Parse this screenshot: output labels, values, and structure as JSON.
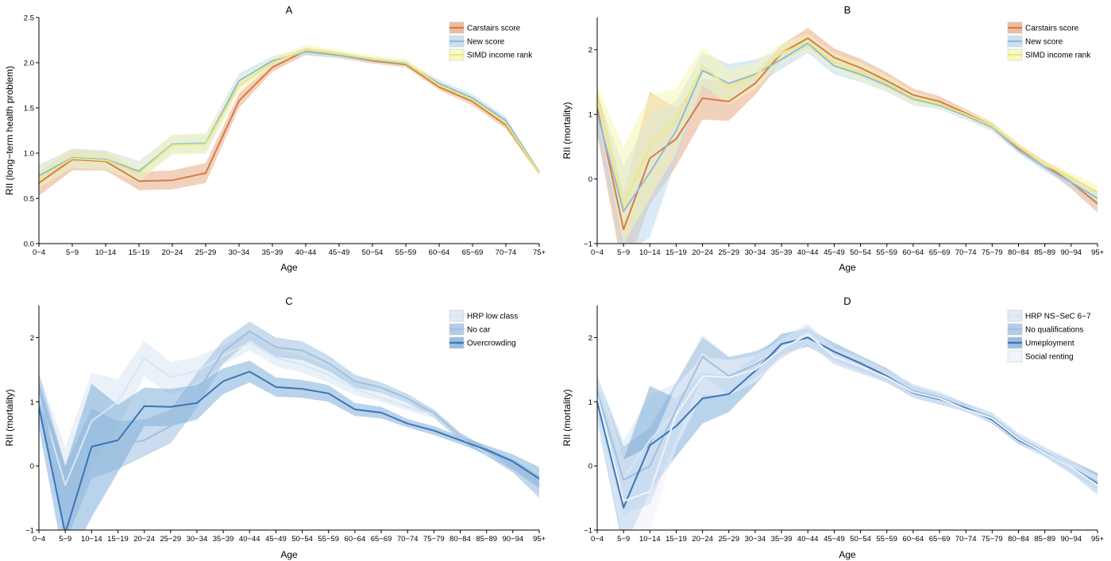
{
  "colors": {
    "carstairs": "#d97a45",
    "carstairs_band": "#e8ab85",
    "new_score": "#8dbbdc",
    "new_score_band": "#bcd9ee",
    "simd": "#ece87a",
    "simd_band": "#f8f6b6",
    "blue1": "#d8e6f4",
    "blue2": "#9fc0de",
    "blue3": "#3b75b7",
    "blue4": "#7faed8",
    "blue5": "#eef3fb"
  },
  "chart_data": [
    {
      "id": "A",
      "type": "line",
      "title": "A",
      "xlabel": "Age",
      "ylabel": "RII (long−term health problem)",
      "ylim": [
        0,
        2.5
      ],
      "yticks": [
        0.0,
        0.5,
        1.0,
        1.5,
        2.0,
        2.5
      ],
      "ytick_labels": [
        "0.0",
        "0.5",
        "1.0",
        "1.5",
        "2.0",
        "2.5"
      ],
      "legend_position": "top-right",
      "categories": [
        "0−4",
        "5−9",
        "10−14",
        "15−19",
        "20−24",
        "25−29",
        "30−34",
        "35−39",
        "40−44",
        "45−49",
        "50−54",
        "55−59",
        "60−64",
        "65−69",
        "70−74",
        "75+"
      ],
      "series": [
        {
          "name": "Carstairs score",
          "color_key": "carstairs",
          "band_key": "carstairs_band",
          "line_width": 2,
          "values": [
            0.67,
            0.93,
            0.91,
            0.69,
            0.7,
            0.78,
            1.58,
            1.95,
            2.13,
            2.08,
            2.02,
            1.98,
            1.73,
            1.57,
            1.31,
            0.78
          ],
          "lower": [
            0.53,
            0.81,
            0.81,
            0.59,
            0.6,
            0.67,
            1.5,
            1.9,
            2.09,
            2.05,
            1.99,
            1.95,
            1.7,
            1.53,
            1.27,
            0.76
          ],
          "upper": [
            0.8,
            1.04,
            1.02,
            0.79,
            0.81,
            0.89,
            1.66,
            2.0,
            2.17,
            2.12,
            2.05,
            2.01,
            1.77,
            1.6,
            1.35,
            0.8
          ]
        },
        {
          "name": "New score",
          "color_key": "new_score",
          "band_key": "new_score_band",
          "line_width": 2,
          "values": [
            0.75,
            0.95,
            0.93,
            0.8,
            1.1,
            1.11,
            1.8,
            2.02,
            2.12,
            2.08,
            2.03,
            1.99,
            1.77,
            1.61,
            1.36,
            0.79
          ],
          "lower": [
            0.65,
            0.85,
            0.83,
            0.7,
            1.0,
            1.0,
            1.72,
            1.97,
            2.08,
            2.05,
            2.0,
            1.96,
            1.73,
            1.57,
            1.32,
            0.77
          ],
          "upper": [
            0.87,
            1.05,
            1.03,
            0.91,
            1.2,
            1.21,
            1.88,
            2.07,
            2.16,
            2.11,
            2.06,
            2.02,
            1.81,
            1.65,
            1.4,
            0.81
          ]
        },
        {
          "name": "SIMD income rank",
          "color_key": "simd",
          "band_key": "simd_band",
          "line_width": 2,
          "values": [
            0.72,
            0.94,
            0.92,
            0.78,
            1.09,
            1.1,
            1.75,
            2.0,
            2.14,
            2.1,
            2.04,
            2.0,
            1.75,
            1.59,
            1.33,
            0.78
          ],
          "lower": [
            0.62,
            0.84,
            0.82,
            0.68,
            0.98,
            0.99,
            1.67,
            1.95,
            2.1,
            2.06,
            2.0,
            1.96,
            1.71,
            1.55,
            1.29,
            0.76
          ],
          "upper": [
            0.84,
            1.04,
            1.02,
            0.89,
            1.21,
            1.22,
            1.84,
            2.06,
            2.2,
            2.14,
            2.08,
            2.04,
            1.79,
            1.63,
            1.37,
            0.81
          ]
        }
      ]
    },
    {
      "id": "B",
      "type": "line",
      "title": "B",
      "xlabel": "Age",
      "ylabel": "RII (mortality)",
      "ylim": [
        -1,
        2.5
      ],
      "yticks": [
        -1,
        0,
        1,
        2
      ],
      "ytick_labels": [
        "−1",
        "0",
        "1",
        "2"
      ],
      "legend_position": "top-right",
      "categories": [
        "0−4",
        "5−9",
        "10−14",
        "15−19",
        "20−24",
        "25−29",
        "30−34",
        "35−39",
        "40−44",
        "45−49",
        "50−54",
        "55−59",
        "60−64",
        "65−69",
        "70−74",
        "75−79",
        "80−84",
        "85−89",
        "90−94",
        "95+"
      ],
      "series": [
        {
          "name": "Carstairs score",
          "color_key": "carstairs",
          "band_key": "carstairs_band",
          "line_width": 2,
          "values": [
            1.1,
            -0.78,
            0.32,
            0.62,
            1.25,
            1.2,
            1.48,
            1.95,
            2.18,
            1.88,
            1.72,
            1.52,
            1.3,
            1.2,
            1.02,
            0.82,
            0.48,
            0.22,
            -0.05,
            -0.38
          ],
          "lower": [
            0.7,
            -1.5,
            -0.4,
            0.2,
            0.92,
            0.9,
            1.3,
            1.82,
            2.02,
            1.74,
            1.58,
            1.4,
            1.2,
            1.12,
            0.96,
            0.76,
            0.42,
            0.16,
            -0.15,
            -0.52
          ],
          "upper": [
            1.4,
            -0.2,
            1.35,
            1.1,
            1.55,
            1.5,
            1.65,
            2.08,
            2.34,
            2.02,
            1.86,
            1.65,
            1.4,
            1.28,
            1.08,
            0.88,
            0.54,
            0.28,
            0.05,
            -0.22
          ]
        },
        {
          "name": "New score",
          "color_key": "new_score",
          "band_key": "new_score_band",
          "line_width": 2,
          "values": [
            1.02,
            -0.5,
            0.1,
            0.75,
            1.68,
            1.48,
            1.62,
            1.85,
            2.1,
            1.75,
            1.62,
            1.45,
            1.24,
            1.14,
            0.98,
            0.8,
            0.45,
            0.18,
            -0.05,
            -0.3
          ],
          "lower": [
            0.7,
            -1.2,
            -0.9,
            0.3,
            1.4,
            1.2,
            1.45,
            1.7,
            1.95,
            1.62,
            1.5,
            1.35,
            1.14,
            1.08,
            0.92,
            0.74,
            0.4,
            0.12,
            -0.12,
            -0.42
          ],
          "upper": [
            1.3,
            0.2,
            1.0,
            1.2,
            1.95,
            1.78,
            1.85,
            2.0,
            2.22,
            1.88,
            1.74,
            1.55,
            1.34,
            1.2,
            1.04,
            0.86,
            0.5,
            0.24,
            0.02,
            -0.18
          ]
        },
        {
          "name": "SIMD income rank",
          "color_key": "simd",
          "band_key": "simd_band",
          "line_width": 2,
          "values": [
            1.3,
            -0.4,
            0.5,
            0.9,
            1.75,
            1.42,
            1.6,
            1.95,
            2.12,
            1.8,
            1.66,
            1.48,
            1.26,
            1.16,
            1.0,
            0.82,
            0.5,
            0.22,
            0.02,
            -0.2
          ],
          "lower": [
            1.0,
            -1.0,
            -0.3,
            0.4,
            1.45,
            1.15,
            1.4,
            1.8,
            1.98,
            1.68,
            1.52,
            1.36,
            1.16,
            1.1,
            0.94,
            0.76,
            0.44,
            0.16,
            -0.06,
            -0.35
          ],
          "upper": [
            1.45,
            0.5,
            1.3,
            1.4,
            2.05,
            1.7,
            1.8,
            2.1,
            2.25,
            1.94,
            1.8,
            1.6,
            1.36,
            1.22,
            1.06,
            0.88,
            0.56,
            0.28,
            0.1,
            -0.1
          ]
        }
      ]
    },
    {
      "id": "C",
      "type": "line",
      "title": "C",
      "xlabel": "Age",
      "ylabel": "RII (mortality)",
      "ylim": [
        -1,
        2.5
      ],
      "yticks": [
        -1,
        0,
        1,
        2
      ],
      "ytick_labels": [
        "−1",
        "0",
        "1",
        "2"
      ],
      "legend_position": "top-right",
      "categories": [
        "0−4",
        "5−9",
        "10−14",
        "15−19",
        "20−24",
        "25−29",
        "30−34",
        "35−39",
        "40−44",
        "45−49",
        "50−54",
        "55−59",
        "60−64",
        "65−69",
        "70−74",
        "75−79",
        "80−84",
        "85−89",
        "90−94",
        "95+"
      ],
      "series": [
        {
          "name": "HRP low class",
          "color_key": "blue1",
          "band_key": "blue1",
          "line_width": 2,
          "values": [
            1.1,
            -0.3,
            0.7,
            1.0,
            1.68,
            1.38,
            1.48,
            1.72,
            1.92,
            1.68,
            1.58,
            1.42,
            1.2,
            1.06,
            0.92,
            0.8,
            0.45,
            0.2,
            0.0,
            -0.32
          ],
          "lower": [
            0.8,
            -0.9,
            0.0,
            0.6,
            1.4,
            1.1,
            1.3,
            1.58,
            1.8,
            1.55,
            1.45,
            1.3,
            1.1,
            1.0,
            0.86,
            0.74,
            0.4,
            0.14,
            -0.1,
            -0.45
          ],
          "upper": [
            1.45,
            0.3,
            1.45,
            1.35,
            1.95,
            1.62,
            1.7,
            1.88,
            2.1,
            1.82,
            1.72,
            1.55,
            1.32,
            1.14,
            0.98,
            0.86,
            0.52,
            0.28,
            0.1,
            -0.18
          ]
        },
        {
          "name": "No car",
          "color_key": "blue2",
          "band_key": "blue2",
          "line_width": 2,
          "values": [
            1.2,
            -0.6,
            0.35,
            0.32,
            0.4,
            0.62,
            1.15,
            1.78,
            2.1,
            1.85,
            1.8,
            1.6,
            1.32,
            1.22,
            1.05,
            0.82,
            0.46,
            0.22,
            0.0,
            -0.32
          ],
          "lower": [
            0.95,
            -1.2,
            -0.2,
            -0.05,
            0.15,
            0.35,
            0.9,
            1.6,
            1.95,
            1.7,
            1.65,
            1.48,
            1.22,
            1.14,
            0.98,
            0.76,
            0.4,
            0.16,
            -0.1,
            -0.5
          ],
          "upper": [
            1.45,
            0.0,
            0.9,
            0.7,
            0.72,
            0.88,
            1.45,
            1.96,
            2.25,
            2.0,
            1.94,
            1.72,
            1.42,
            1.3,
            1.12,
            0.88,
            0.52,
            0.28,
            0.1,
            -0.15
          ]
        },
        {
          "name": "Overcrowding",
          "color_key": "blue3",
          "band_key": "blue4",
          "line_width": 2,
          "values": [
            0.92,
            -1.05,
            0.3,
            0.4,
            0.93,
            0.92,
            0.98,
            1.32,
            1.47,
            1.23,
            1.2,
            1.13,
            0.88,
            0.83,
            0.66,
            0.55,
            0.4,
            0.25,
            0.07,
            -0.2
          ],
          "lower": [
            0.6,
            -1.6,
            -0.8,
            -0.1,
            0.62,
            0.62,
            0.72,
            1.12,
            1.3,
            1.08,
            1.06,
            1.0,
            0.78,
            0.74,
            0.6,
            0.48,
            0.34,
            0.18,
            -0.05,
            -0.35
          ],
          "upper": [
            1.3,
            0.0,
            1.28,
            0.95,
            1.22,
            1.2,
            1.26,
            1.52,
            1.64,
            1.38,
            1.34,
            1.26,
            0.98,
            0.92,
            0.73,
            0.62,
            0.46,
            0.32,
            0.18,
            -0.02
          ]
        }
      ]
    },
    {
      "id": "D",
      "type": "line",
      "title": "D",
      "xlabel": "Age",
      "ylabel": "RII (mortality)",
      "ylim": [
        -1,
        2.5
      ],
      "yticks": [
        -1,
        0,
        1,
        2
      ],
      "ytick_labels": [
        "−1",
        "0",
        "1",
        "2"
      ],
      "legend_position": "top-right",
      "categories": [
        "0−4",
        "5−9",
        "10−14",
        "15−19",
        "20−24",
        "25−29",
        "30−34",
        "35−39",
        "40−44",
        "45−49",
        "50−54",
        "55−59",
        "60−64",
        "65−69",
        "70−74",
        "75−79",
        "80−84",
        "85−89",
        "90−94",
        "95+"
      ],
      "series": [
        {
          "name": "HRP NS−SeC 6−7",
          "color_key": "blue1",
          "band_key": "blue1",
          "line_width": 2,
          "values": [
            1.1,
            -0.2,
            0.4,
            0.85,
            1.75,
            1.42,
            1.6,
            1.85,
            2.08,
            1.72,
            1.55,
            1.42,
            1.18,
            1.08,
            0.92,
            0.78,
            0.46,
            0.24,
            0.0,
            -0.22
          ],
          "lower": [
            0.8,
            -0.8,
            -0.2,
            0.4,
            1.45,
            1.15,
            1.4,
            1.7,
            1.95,
            1.6,
            1.45,
            1.32,
            1.1,
            1.0,
            0.86,
            0.72,
            0.4,
            0.18,
            -0.1,
            -0.35
          ],
          "upper": [
            1.4,
            0.4,
            1.1,
            1.3,
            2.05,
            1.7,
            1.8,
            2.0,
            2.22,
            1.85,
            1.68,
            1.52,
            1.28,
            1.16,
            0.98,
            0.84,
            0.52,
            0.3,
            0.1,
            -0.1
          ]
        },
        {
          "name": "No qualifications",
          "color_key": "blue2",
          "band_key": "blue2",
          "line_width": 2,
          "values": [
            1.15,
            -0.22,
            0.0,
            0.88,
            1.7,
            1.4,
            1.58,
            1.82,
            2.05,
            1.7,
            1.55,
            1.4,
            1.17,
            1.07,
            0.91,
            0.76,
            0.44,
            0.22,
            -0.02,
            -0.25
          ],
          "lower": [
            0.85,
            -0.75,
            -0.6,
            0.4,
            1.4,
            1.1,
            1.38,
            1.68,
            1.92,
            1.58,
            1.44,
            1.3,
            1.08,
            1.0,
            0.85,
            0.7,
            0.38,
            0.16,
            -0.12,
            -0.38
          ],
          "upper": [
            1.4,
            0.3,
            0.6,
            1.3,
            2.0,
            1.7,
            1.78,
            1.96,
            2.18,
            1.82,
            1.66,
            1.5,
            1.26,
            1.14,
            0.97,
            0.82,
            0.5,
            0.28,
            0.08,
            -0.12
          ]
        },
        {
          "name": "Umeployment",
          "color_key": "blue3",
          "band_key": "blue4",
          "line_width": 2,
          "values": [
            1.0,
            -0.65,
            0.32,
            0.62,
            1.05,
            1.12,
            1.48,
            1.9,
            2.0,
            1.78,
            1.6,
            1.4,
            1.14,
            1.04,
            0.9,
            0.72,
            0.4,
            0.2,
            -0.02,
            -0.28
          ],
          "lower": [
            0.7,
            -1.3,
            -0.4,
            0.15,
            0.66,
            0.84,
            1.26,
            1.74,
            1.86,
            1.64,
            1.48,
            1.3,
            1.06,
            0.96,
            0.84,
            0.66,
            0.34,
            0.14,
            -0.12,
            -0.45
          ],
          "upper": [
            1.3,
            0.1,
            1.25,
            1.05,
            1.45,
            1.4,
            1.7,
            2.06,
            2.14,
            1.92,
            1.72,
            1.52,
            1.24,
            1.12,
            0.96,
            0.78,
            0.46,
            0.26,
            0.08,
            -0.12
          ]
        },
        {
          "name": "Social renting",
          "color_key": "blue5",
          "band_key": "blue5",
          "line_width": 2,
          "values": [
            1.1,
            -0.55,
            -0.4,
            0.8,
            1.4,
            1.38,
            1.5,
            1.82,
            2.05,
            1.7,
            1.55,
            1.38,
            1.15,
            1.05,
            0.88,
            0.74,
            0.42,
            0.2,
            -0.02,
            -0.3
          ],
          "lower": [
            0.7,
            -1.2,
            -1.0,
            0.3,
            1.1,
            1.1,
            1.3,
            1.66,
            1.9,
            1.58,
            1.44,
            1.28,
            1.06,
            0.98,
            0.82,
            0.68,
            0.36,
            0.14,
            -0.12,
            -0.45
          ],
          "upper": [
            1.45,
            0.1,
            0.3,
            1.25,
            1.7,
            1.65,
            1.72,
            1.98,
            2.2,
            1.84,
            1.68,
            1.5,
            1.26,
            1.14,
            0.95,
            0.82,
            0.5,
            0.28,
            0.08,
            -0.15
          ]
        }
      ]
    }
  ]
}
